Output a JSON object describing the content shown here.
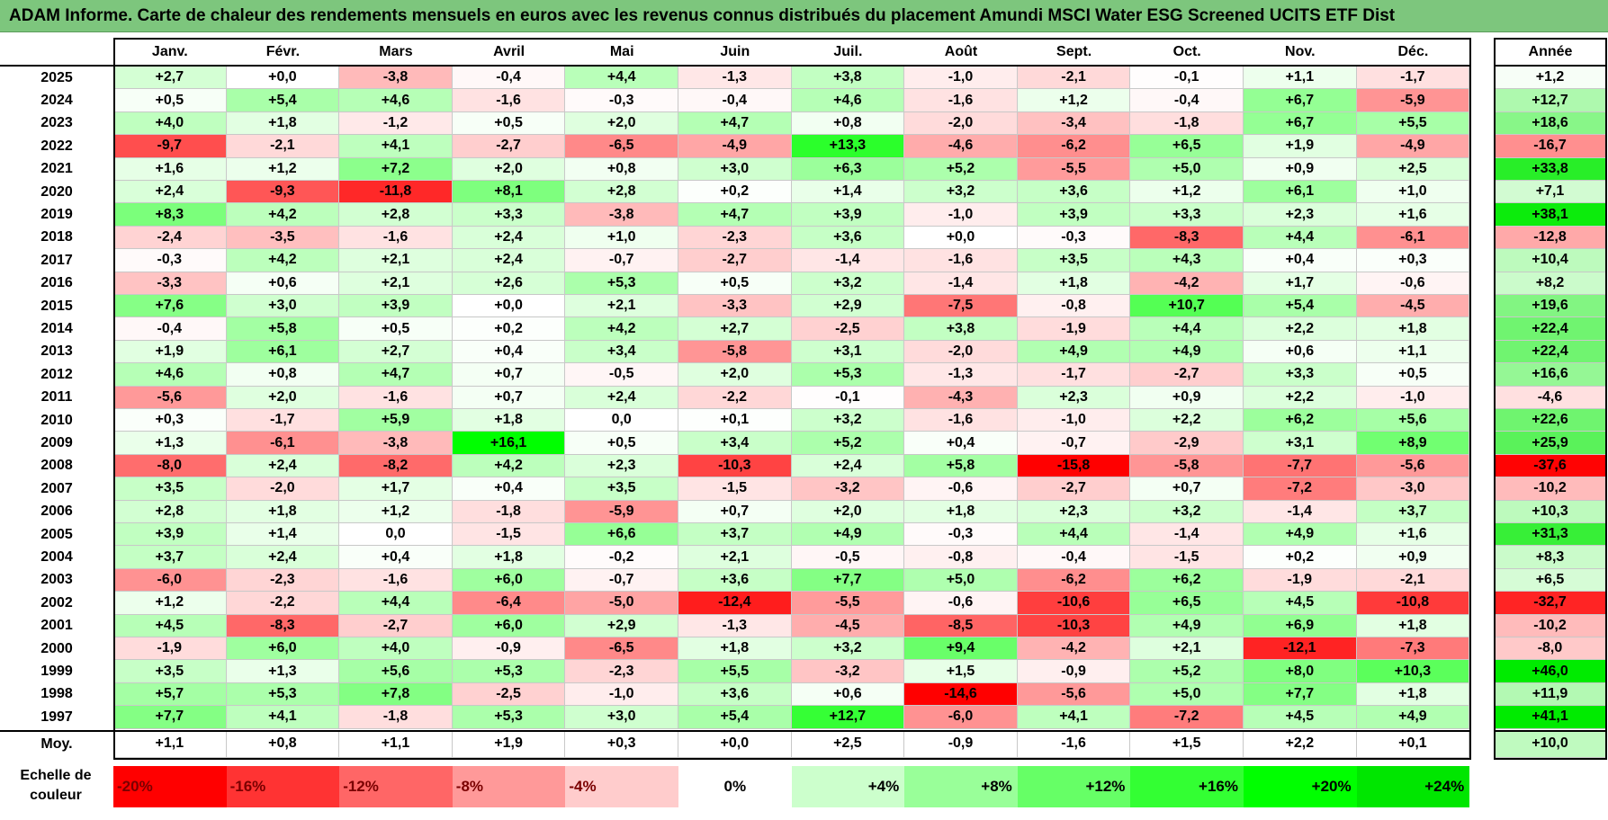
{
  "chart_data": {
    "type": "heatmap",
    "title": "ADAM Informe. Carte de chaleur des rendements mensuels en euros avec les revenus connus distribués du placement Amundi MSCI Water ESG Screened UCITS ETF Dist",
    "columns": [
      "Janv.",
      "Févr.",
      "Mars",
      "Avril",
      "Mai",
      "Juin",
      "Juil.",
      "Août",
      "Sept.",
      "Oct.",
      "Nov.",
      "Déc."
    ],
    "annual_header": "Année",
    "rows": [
      {
        "year": "2025",
        "values": [
          "+2,7",
          "+0,0",
          "-3,8",
          "-0,4",
          "+4,4",
          "-1,3",
          "+3,8",
          "-1,0",
          "-2,1",
          "-0,1",
          "+1,1",
          "-1,7"
        ],
        "annual": "+1,2"
      },
      {
        "year": "2024",
        "values": [
          "+0,5",
          "+5,4",
          "+4,6",
          "-1,6",
          "-0,3",
          "-0,4",
          "+4,6",
          "-1,6",
          "+1,2",
          "-0,4",
          "+6,7",
          "-5,9"
        ],
        "annual": "+12,7"
      },
      {
        "year": "2023",
        "values": [
          "+4,0",
          "+1,8",
          "-1,2",
          "+0,5",
          "+2,0",
          "+4,7",
          "+0,8",
          "-2,0",
          "-3,4",
          "-1,8",
          "+6,7",
          "+5,5"
        ],
        "annual": "+18,6"
      },
      {
        "year": "2022",
        "values": [
          "-9,7",
          "-2,1",
          "+4,1",
          "-2,7",
          "-6,5",
          "-4,9",
          "+13,3",
          "-4,6",
          "-6,2",
          "+6,5",
          "+1,9",
          "-4,9"
        ],
        "annual": "-16,7"
      },
      {
        "year": "2021",
        "values": [
          "+1,6",
          "+1,2",
          "+7,2",
          "+2,0",
          "+0,8",
          "+3,0",
          "+6,3",
          "+5,2",
          "-5,5",
          "+5,0",
          "+0,9",
          "+2,5"
        ],
        "annual": "+33,8"
      },
      {
        "year": "2020",
        "values": [
          "+2,4",
          "-9,3",
          "-11,8",
          "+8,1",
          "+2,8",
          "+0,2",
          "+1,4",
          "+3,2",
          "+3,6",
          "+1,2",
          "+6,1",
          "+1,0"
        ],
        "annual": "+7,1"
      },
      {
        "year": "2019",
        "values": [
          "+8,3",
          "+4,2",
          "+2,8",
          "+3,3",
          "-3,8",
          "+4,7",
          "+3,9",
          "-1,0",
          "+3,9",
          "+3,3",
          "+2,3",
          "+1,6"
        ],
        "annual": "+38,1"
      },
      {
        "year": "2018",
        "values": [
          "-2,4",
          "-3,5",
          "-1,6",
          "+2,4",
          "+1,0",
          "-2,3",
          "+3,6",
          "+0,0",
          "-0,3",
          "-8,3",
          "+4,4",
          "-6,1"
        ],
        "annual": "-12,8"
      },
      {
        "year": "2017",
        "values": [
          "-0,3",
          "+4,2",
          "+2,1",
          "+2,4",
          "-0,7",
          "-2,7",
          "-1,4",
          "-1,6",
          "+3,5",
          "+4,3",
          "+0,4",
          "+0,3"
        ],
        "annual": "+10,4"
      },
      {
        "year": "2016",
        "values": [
          "-3,3",
          "+0,6",
          "+2,1",
          "+2,6",
          "+5,3",
          "+0,5",
          "+3,2",
          "-1,4",
          "+1,8",
          "-4,2",
          "+1,7",
          "-0,6"
        ],
        "annual": "+8,2"
      },
      {
        "year": "2015",
        "values": [
          "+7,6",
          "+3,0",
          "+3,9",
          "+0,0",
          "+2,1",
          "-3,3",
          "+2,9",
          "-7,5",
          "-0,8",
          "+10,7",
          "+5,4",
          "-4,5"
        ],
        "annual": "+19,6"
      },
      {
        "year": "2014",
        "values": [
          "-0,4",
          "+5,8",
          "+0,5",
          "+0,2",
          "+4,2",
          "+2,7",
          "-2,5",
          "+3,8",
          "-1,9",
          "+4,4",
          "+2,2",
          "+1,8"
        ],
        "annual": "+22,4"
      },
      {
        "year": "2013",
        "values": [
          "+1,9",
          "+6,1",
          "+2,7",
          "+0,4",
          "+3,4",
          "-5,8",
          "+3,1",
          "-2,0",
          "+4,9",
          "+4,9",
          "+0,6",
          "+1,1"
        ],
        "annual": "+22,4"
      },
      {
        "year": "2012",
        "values": [
          "+4,6",
          "+0,8",
          "+4,7",
          "+0,7",
          "-0,5",
          "+2,0",
          "+5,3",
          "-1,3",
          "-1,7",
          "-2,7",
          "+3,3",
          "+0,5"
        ],
        "annual": "+16,6"
      },
      {
        "year": "2011",
        "values": [
          "-5,6",
          "+2,0",
          "-1,6",
          "+0,7",
          "+2,4",
          "-2,2",
          "-0,1",
          "-4,3",
          "+2,3",
          "+0,9",
          "+2,2",
          "-1,0"
        ],
        "annual": "-4,6"
      },
      {
        "year": "2010",
        "values": [
          "+0,3",
          "-1,7",
          "+5,9",
          "+1,8",
          "0,0",
          "+0,1",
          "+3,2",
          "-1,6",
          "-1,0",
          "+2,2",
          "+6,2",
          "+5,6"
        ],
        "annual": "+22,6"
      },
      {
        "year": "2009",
        "values": [
          "+1,3",
          "-6,1",
          "-3,8",
          "+16,1",
          "+0,5",
          "+3,4",
          "+5,2",
          "+0,4",
          "-0,7",
          "-2,9",
          "+3,1",
          "+8,9"
        ],
        "annual": "+25,9"
      },
      {
        "year": "2008",
        "values": [
          "-8,0",
          "+2,4",
          "-8,2",
          "+4,2",
          "+2,3",
          "-10,3",
          "+2,4",
          "+5,8",
          "-15,8",
          "-5,8",
          "-7,7",
          "-5,6"
        ],
        "annual": "-37,6"
      },
      {
        "year": "2007",
        "values": [
          "+3,5",
          "-2,0",
          "+1,7",
          "+0,4",
          "+3,5",
          "-1,5",
          "-3,2",
          "-0,6",
          "-2,7",
          "+0,7",
          "-7,2",
          "-3,0"
        ],
        "annual": "-10,2"
      },
      {
        "year": "2006",
        "values": [
          "+2,8",
          "+1,8",
          "+1,2",
          "-1,8",
          "-5,9",
          "+0,7",
          "+2,0",
          "+1,8",
          "+2,3",
          "+3,2",
          "-1,4",
          "+3,7"
        ],
        "annual": "+10,3"
      },
      {
        "year": "2005",
        "values": [
          "+3,9",
          "+1,4",
          "0,0",
          "-1,5",
          "+6,6",
          "+3,7",
          "+4,9",
          "-0,3",
          "+4,4",
          "-1,4",
          "+4,9",
          "+1,6"
        ],
        "annual": "+31,3"
      },
      {
        "year": "2004",
        "values": [
          "+3,7",
          "+2,4",
          "+0,4",
          "+1,8",
          "-0,2",
          "+2,1",
          "-0,5",
          "-0,8",
          "-0,4",
          "-1,5",
          "+0,2",
          "+0,9"
        ],
        "annual": "+8,3"
      },
      {
        "year": "2003",
        "values": [
          "-6,0",
          "-2,3",
          "-1,6",
          "+6,0",
          "-0,7",
          "+3,6",
          "+7,7",
          "+5,0",
          "-6,2",
          "+6,2",
          "-1,9",
          "-2,1"
        ],
        "annual": "+6,5"
      },
      {
        "year": "2002",
        "values": [
          "+1,2",
          "-2,2",
          "+4,4",
          "-6,4",
          "-5,0",
          "-12,4",
          "-5,5",
          "-0,6",
          "-10,6",
          "+6,5",
          "+4,5",
          "-10,8"
        ],
        "annual": "-32,7"
      },
      {
        "year": "2001",
        "values": [
          "+4,5",
          "-8,3",
          "-2,7",
          "+6,0",
          "+2,9",
          "-1,3",
          "-4,5",
          "-8,5",
          "-10,3",
          "+4,9",
          "+6,9",
          "+1,8"
        ],
        "annual": "-10,2"
      },
      {
        "year": "2000",
        "values": [
          "-1,9",
          "+6,0",
          "+4,0",
          "-0,9",
          "-6,5",
          "+1,8",
          "+3,2",
          "+9,4",
          "-4,2",
          "+2,1",
          "-12,1",
          "-7,3"
        ],
        "annual": "-8,0"
      },
      {
        "year": "1999",
        "values": [
          "+3,5",
          "+1,3",
          "+5,6",
          "+5,3",
          "-2,3",
          "+5,5",
          "-3,2",
          "+1,5",
          "-0,9",
          "+5,2",
          "+8,0",
          "+10,3"
        ],
        "annual": "+46,0"
      },
      {
        "year": "1998",
        "values": [
          "+5,7",
          "+5,3",
          "+7,8",
          "-2,5",
          "-1,0",
          "+3,6",
          "+0,6",
          "-14,6",
          "-5,6",
          "+5,0",
          "+7,7",
          "+1,8"
        ],
        "annual": "+11,9"
      },
      {
        "year": "1997",
        "values": [
          "+7,7",
          "+4,1",
          "-1,8",
          "+5,3",
          "+3,0",
          "+5,4",
          "+12,7",
          "-6,0",
          "+4,1",
          "-7,2",
          "+4,5",
          "+4,9"
        ],
        "annual": "+41,1"
      }
    ],
    "average": {
      "label": "Moy.",
      "values": [
        "+1,1",
        "+0,8",
        "+1,1",
        "+1,9",
        "+0,3",
        "+0,0",
        "+2,5",
        "-0,9",
        "-1,6",
        "+1,5",
        "+2,2",
        "+0,1"
      ],
      "annual": "+10,0"
    },
    "color_scale": {
      "label": "Echelle de couleur",
      "stops": [
        {
          "label": "-20%",
          "value": -20,
          "color": "#ff0000"
        },
        {
          "label": "-16%",
          "value": -16,
          "color": "#ff3333"
        },
        {
          "label": "-12%",
          "value": -12,
          "color": "#ff6666"
        },
        {
          "label": "-8%",
          "value": -8,
          "color": "#ff9999"
        },
        {
          "label": "-4%",
          "value": -4,
          "color": "#ffcccc"
        },
        {
          "label": "0%",
          "value": 0,
          "color": "#ffffff"
        },
        {
          "label": "+4%",
          "value": 4,
          "color": "#ccffcc"
        },
        {
          "label": "+8%",
          "value": 8,
          "color": "#99ff99"
        },
        {
          "label": "+12%",
          "value": 12,
          "color": "#66ff66"
        },
        {
          "label": "+16%",
          "value": 16,
          "color": "#33ff33"
        },
        {
          "label": "+20%",
          "value": 20,
          "color": "#00ff00"
        },
        {
          "label": "+24%",
          "value": 24,
          "color": "#00e600"
        }
      ]
    }
  }
}
